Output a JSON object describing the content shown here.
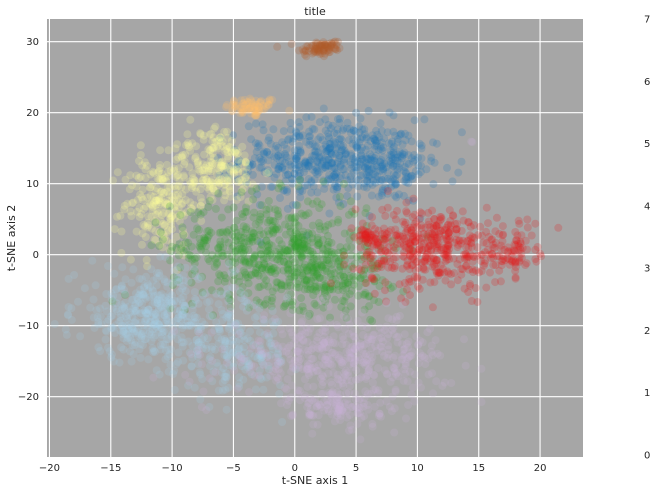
{
  "chart_data": {
    "type": "scatter",
    "title": "title",
    "xlabel": "t-SNE axis 1",
    "ylabel": "t-SNE axis 2",
    "xlim": [
      -20.2,
      23.5
    ],
    "ylim": [
      -28.5,
      33.2
    ],
    "xticks": [
      -20,
      -15,
      -10,
      -5,
      0,
      5,
      10,
      15,
      20
    ],
    "yticks": [
      -20,
      -10,
      0,
      10,
      20,
      30
    ],
    "xtick_labels": [
      "−20",
      "−15",
      "−10",
      "−5",
      "0",
      "5",
      "10",
      "15",
      "20"
    ],
    "ytick_labels": [
      "−20",
      "−10",
      "0",
      "10",
      "20",
      "30"
    ],
    "grid": true,
    "background": "#a6a6a6",
    "point_opacity": 0.22,
    "colorbar": {
      "min": 0,
      "max": 7,
      "tick_labels": [
        "0",
        "1",
        "2",
        "3",
        "4",
        "5",
        "6",
        "7"
      ],
      "colors": [
        "#a6cee3",
        "#1f78b4",
        "#b2df8a",
        "#33a02c",
        "#fb9a99",
        "#e31a1c",
        "#fdbf6f",
        "#ff7f00",
        "#cab2d6",
        "#6a3d9a",
        "#ffff99",
        "#b15928"
      ],
      "opacity": 0.35
    },
    "series": [
      {
        "color": "#fdbf6f",
        "clusters": [
          {
            "cx": -3.5,
            "cy": 20.8,
            "sx": 1.1,
            "sy": 0.7,
            "n": 70
          }
        ]
      },
      {
        "color": "#b15928",
        "clusters": [
          {
            "cx": 1.8,
            "cy": 29.0,
            "sx": 0.8,
            "sy": 0.6,
            "n": 60
          },
          {
            "cx": 3.0,
            "cy": 29.5,
            "sx": 0.6,
            "sy": 0.4,
            "n": 20
          }
        ]
      },
      {
        "color": "#1f78b4",
        "clusters": [
          {
            "cx": 2.8,
            "cy": 13.5,
            "sx": 3.6,
            "sy": 2.8,
            "n": 480
          },
          {
            "cx": 7.5,
            "cy": 12.0,
            "sx": 2.0,
            "sy": 2.3,
            "n": 120
          }
        ]
      },
      {
        "color": "#ffff99",
        "clusters": [
          {
            "cx": -11.0,
            "cy": 7.0,
            "sx": 1.5,
            "sy": 3.5,
            "n": 190
          },
          {
            "cx": -6.5,
            "cy": 12.0,
            "sx": 1.9,
            "sy": 2.4,
            "n": 190
          }
        ]
      },
      {
        "color": "#33a02c",
        "clusters": [
          {
            "cx": -2.0,
            "cy": 1.0,
            "sx": 4.0,
            "sy": 3.6,
            "n": 520
          },
          {
            "cx": 2.5,
            "cy": -3.0,
            "sx": 2.5,
            "sy": 2.5,
            "n": 200
          }
        ]
      },
      {
        "color": "#e31a1c",
        "clusters": [
          {
            "cx": 11.0,
            "cy": 1.0,
            "sx": 3.0,
            "sy": 2.9,
            "n": 430
          },
          {
            "cx": 17.5,
            "cy": 0.3,
            "sx": 1.1,
            "sy": 1.6,
            "n": 80
          },
          {
            "cx": 6.0,
            "cy": 2.5,
            "sx": 0.9,
            "sy": 0.8,
            "n": 40
          }
        ]
      },
      {
        "color": "#a6cee3",
        "clusters": [
          {
            "cx": -11.5,
            "cy": -8.5,
            "sx": 3.2,
            "sy": 3.2,
            "n": 420
          },
          {
            "cx": -5.0,
            "cy": -14.0,
            "sx": 2.4,
            "sy": 2.8,
            "n": 190
          }
        ]
      },
      {
        "color": "#cab2d6",
        "clusters": [
          {
            "cx": 3.5,
            "cy": -14.5,
            "sx": 4.5,
            "sy": 3.0,
            "n": 440
          },
          {
            "cx": 4.0,
            "cy": -21.5,
            "sx": 2.0,
            "sy": 1.4,
            "n": 110
          }
        ]
      },
      {
        "color": "#ffff99",
        "clusters": [
          {
            "cx": -6.5,
            "cy": 17.0,
            "sx": 0.5,
            "sy": 0.5,
            "n": 12
          }
        ]
      },
      {
        "color": "#cab2d6",
        "clusters": [
          {
            "cx": 14.5,
            "cy": 15.8,
            "sx": 0.2,
            "sy": 0.2,
            "n": 2
          }
        ]
      }
    ]
  }
}
